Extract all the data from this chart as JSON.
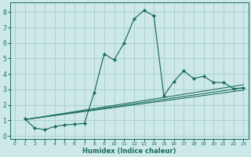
{
  "xlabel": "Humidex (Indice chaleur)",
  "bg_color": "#cce8e8",
  "grid_color": "#aacccc",
  "line_color": "#1a6b5a",
  "xlim": [
    -0.5,
    23.5
  ],
  "ylim": [
    -0.2,
    8.6
  ],
  "xticks": [
    0,
    1,
    2,
    3,
    4,
    5,
    6,
    7,
    8,
    9,
    10,
    11,
    12,
    13,
    14,
    15,
    16,
    17,
    18,
    19,
    20,
    21,
    22,
    23
  ],
  "yticks": [
    0,
    1,
    2,
    3,
    4,
    5,
    6,
    7,
    8
  ],
  "main_series": {
    "x": [
      1,
      2,
      3,
      4,
      5,
      6,
      7,
      8,
      9,
      10,
      11,
      12,
      13,
      14,
      15,
      16,
      17,
      18,
      19,
      20,
      21,
      22,
      23
    ],
    "y": [
      1.1,
      0.5,
      0.4,
      0.6,
      0.7,
      0.75,
      0.8,
      2.8,
      5.3,
      4.9,
      6.0,
      7.55,
      8.1,
      7.75,
      2.6,
      3.5,
      4.2,
      3.7,
      3.85,
      3.45,
      3.45,
      3.05,
      3.1
    ]
  },
  "smooth_lines": [
    {
      "x": [
        1,
        23
      ],
      "y": [
        1.05,
        2.95
      ]
    },
    {
      "x": [
        1,
        23
      ],
      "y": [
        1.05,
        3.1
      ]
    },
    {
      "x": [
        1,
        23
      ],
      "y": [
        1.05,
        3.3
      ]
    }
  ]
}
